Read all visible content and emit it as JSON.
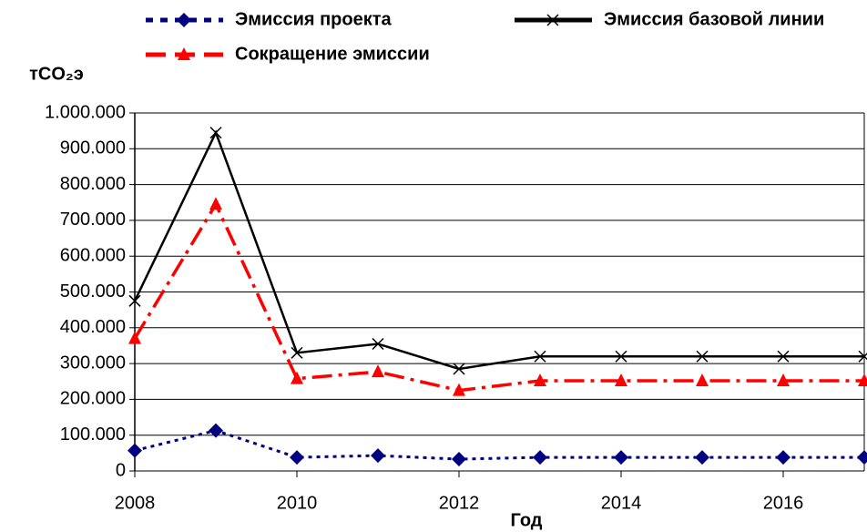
{
  "chart_data": {
    "type": "line",
    "y_label": "тCO₂э",
    "x_label": "Год",
    "x": [
      2008,
      2009,
      2010,
      2011,
      2012,
      2013,
      2014,
      2015,
      2016,
      2017
    ],
    "series": [
      {
        "name": "Эмиссия проекта",
        "color": "#000080",
        "style": "dotted",
        "marker": "diamond",
        "values": [
          57000,
          113000,
          38000,
          43000,
          33000,
          38000,
          38000,
          38000,
          38000,
          38000
        ]
      },
      {
        "name": "Эмиссия базовой линии",
        "color": "#000000",
        "style": "solid",
        "marker": "x",
        "values": [
          475000,
          945000,
          330000,
          355000,
          285000,
          320000,
          320000,
          320000,
          320000,
          320000
        ]
      },
      {
        "name": "Сокращение эмиссии",
        "color": "#ff0000",
        "style": "dashdot",
        "marker": "triangle",
        "values": [
          370000,
          745000,
          258000,
          277000,
          225000,
          252000,
          252000,
          252000,
          252000,
          252000
        ]
      }
    ],
    "xlim": [
      2008,
      2017
    ],
    "xticks": [
      2008,
      2010,
      2012,
      2014,
      2016
    ],
    "ylim": [
      0,
      1000000
    ],
    "yticks": [
      0,
      {
        "value": 100000,
        "label": "100.000"
      },
      {
        "value": 200000,
        "label": "200.000"
      },
      {
        "value": 300000,
        "label": "300.000"
      },
      {
        "value": 400000,
        "label": "400.000"
      },
      {
        "value": 500000,
        "label": "500.000"
      },
      {
        "value": 600000,
        "label": "600.000"
      },
      {
        "value": 700000,
        "label": "700.000"
      },
      {
        "value": 800000,
        "label": "800.000"
      },
      {
        "value": 900000,
        "label": "900.000"
      },
      {
        "value": 1000000,
        "label": "1.000.000"
      }
    ],
    "grid": true
  }
}
